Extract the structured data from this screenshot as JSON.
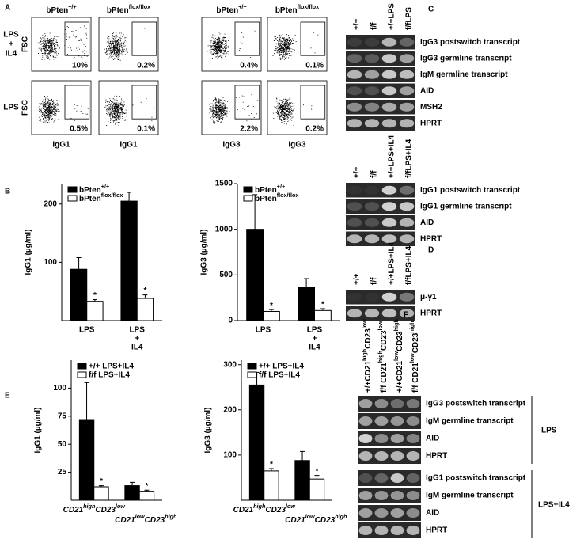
{
  "panels": {
    "A": {
      "label": "A",
      "columns": [
        {
          "header": [
            "bPten",
            "+/+"
          ],
          "xlabel": "IgG1"
        },
        {
          "header": [
            "bPten",
            "flox/flox"
          ],
          "xlabel": "IgG1"
        },
        {
          "header": [
            "bPten",
            "+/+"
          ],
          "xlabel": "IgG3"
        },
        {
          "header": [
            "bPten",
            "flox/flox"
          ],
          "xlabel": "IgG3"
        }
      ],
      "rows": [
        {
          "label": [
            "LPS",
            "+",
            "IL4"
          ],
          "axis": "FSC"
        },
        {
          "label": [
            "LPS"
          ],
          "axis": "FSC"
        }
      ],
      "gates": [
        [
          "10%",
          "0.2%",
          "0.4%",
          "0.1%"
        ],
        [
          "0.5%",
          "0.1%",
          "2.2%",
          "0.2%"
        ]
      ]
    },
    "B": {
      "label": "B",
      "charts": [
        {
          "type": "bar",
          "ylabel": "IgG1 (µg/ml)",
          "ylim": [
            0,
            235
          ],
          "yticks": [
            100,
            200
          ],
          "categories": [
            [
              "LPS"
            ],
            [
              "LPS",
              "+",
              "IL4"
            ]
          ],
          "series": [
            {
              "name": [
                "bPten",
                "+/+"
              ],
              "color": "#000000",
              "values": [
                88,
                205
              ],
              "errors": [
                20,
                15
              ]
            },
            {
              "name": [
                "bPten",
                "flox/flox"
              ],
              "color": "#ffffff",
              "values": [
                33,
                38
              ],
              "errors": [
                3,
                6
              ],
              "notes": [
                "*",
                "*"
              ]
            }
          ]
        },
        {
          "type": "bar",
          "ylabel": "IgG3 (µg/ml)",
          "ylim": [
            0,
            1500
          ],
          "yticks": [
            0,
            500,
            1000,
            1500
          ],
          "categories": [
            [
              "LPS"
            ],
            [
              "LPS",
              "+",
              "IL4"
            ]
          ],
          "series": [
            {
              "name": [
                "bPten",
                "+/+"
              ],
              "color": "#000000",
              "values": [
                1000,
                360
              ],
              "errors": [
                380,
                100
              ]
            },
            {
              "name": [
                "bPten",
                "flox/flox"
              ],
              "color": "#ffffff",
              "values": [
                100,
                110
              ],
              "errors": [
                20,
                20
              ],
              "notes": [
                "*",
                "*"
              ]
            }
          ]
        }
      ]
    },
    "C": {
      "label": "C",
      "gels": [
        {
          "lanes": [
            "+/+",
            "f/f",
            "+/+LPS",
            "f/fLPS"
          ],
          "bands": [
            "IgG3 postswitch transcript",
            "IgG3 germline transcript",
            "IgM  germline transcript",
            "AID",
            "MSH2",
            "HPRT"
          ]
        },
        {
          "lanes": [
            "+/+",
            "f/f",
            "+/+LPS+IL4",
            "f/fLPS+IL4"
          ],
          "bands": [
            "IgG1 postswitch transcript",
            "IgG1 germline transcript",
            "AID",
            "HPRT"
          ]
        }
      ]
    },
    "D": {
      "label": "D",
      "gels": [
        {
          "lanes": [
            "+/+",
            "f/f",
            "+/+LPS+IL4",
            "f/fLPS+IL4"
          ],
          "bands": [
            "μ-γ1",
            "HPRT"
          ]
        }
      ]
    },
    "E": {
      "label": "E",
      "charts": [
        {
          "type": "bar",
          "ylabel": "IgG1 (µg/ml)",
          "ylim": [
            0,
            125
          ],
          "yticks": [
            25,
            50,
            75,
            100
          ],
          "categories": [
            [
              "CD21",
              "high",
              "CD23",
              "low"
            ],
            [
              "CD21",
              "low",
              "CD23",
              "high"
            ]
          ],
          "series": [
            {
              "name": "+/+ LPS+IL4",
              "color": "#000000",
              "values": [
                72,
                13
              ],
              "errors": [
                33,
                3
              ]
            },
            {
              "name": "f/f  LPS+IL4",
              "color": "#ffffff",
              "values": [
                12,
                8
              ],
              "errors": [
                1,
                1
              ],
              "notes": [
                "*",
                "*"
              ]
            }
          ]
        },
        {
          "type": "bar",
          "ylabel": "IgG3 (µg/ml)",
          "ylim": [
            0,
            310
          ],
          "yticks": [
            100,
            200,
            300
          ],
          "categories": [
            [
              "CD21",
              "high",
              "CD23",
              "low"
            ],
            [
              "CD21",
              "low",
              "CD23",
              "high"
            ]
          ],
          "series": [
            {
              "name": "+/+ LPS+IL4",
              "color": "#000000",
              "values": [
                255,
                88
              ],
              "errors": [
                28,
                20
              ]
            },
            {
              "name": "f/f  LPS+IL4",
              "color": "#ffffff",
              "values": [
                65,
                47
              ],
              "errors": [
                5,
                8
              ],
              "notes": [
                "*",
                "*"
              ]
            }
          ]
        }
      ]
    },
    "F": {
      "label": "F",
      "lanes": [
        [
          "+/+CD21",
          "high",
          "CD23",
          "low"
        ],
        [
          "f/f CD21",
          "high",
          "CD23",
          "low"
        ],
        [
          "+/+CD21",
          "low",
          "CD23",
          "high"
        ],
        [
          "f/f CD21",
          "low",
          "CD23",
          "high"
        ]
      ],
      "gels": [
        {
          "condition": "LPS",
          "bands": [
            "IgG3 postswitch transcript",
            "IgM  germline transcript",
            "AID",
            "HPRT"
          ]
        },
        {
          "condition": "LPS+IL4",
          "bands": [
            "IgG1 postswitch transcript",
            "IgM  germline transcript",
            "AID",
            "HPRT"
          ]
        }
      ]
    }
  }
}
